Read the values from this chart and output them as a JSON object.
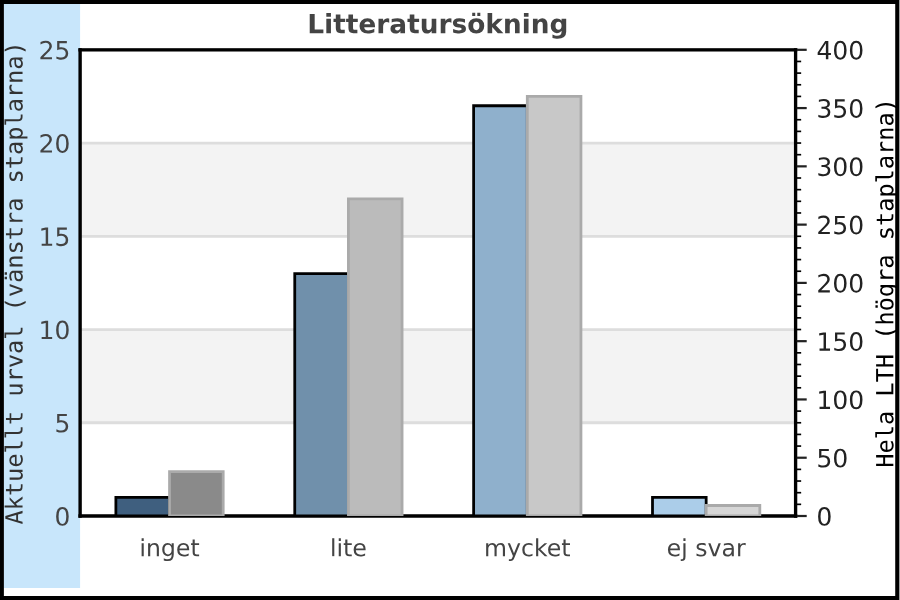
{
  "chart_data": {
    "type": "bar",
    "title": "Litteratursökning",
    "ylabel": "Aktuellt urval (vänstra staplarna)",
    "y2label": "Hela LTH (högra staplarna)",
    "categories": [
      "inget",
      "lite",
      "mycket",
      "ej svar"
    ],
    "series": [
      {
        "colors": [
          "#3f5f7f",
          "#7090ab",
          "#8fb0cc",
          "#abcde9"
        ],
        "values": [
          1,
          13,
          22,
          1
        ]
      },
      {
        "colors": [
          "#8a8a8a",
          "#bbbbbb",
          "#c8c8c8",
          "#d6d6d6"
        ],
        "values": [
          38,
          272,
          360,
          9
        ],
        "axis": "y2"
      }
    ],
    "ylim": [
      0,
      25
    ],
    "yticks": [
      0,
      5,
      10,
      15,
      20,
      25
    ],
    "y2lim": [
      0,
      400
    ],
    "y2ticks": [
      0,
      50,
      100,
      150,
      200,
      250,
      300,
      350,
      400
    ],
    "grid": "y",
    "legend": false
  }
}
